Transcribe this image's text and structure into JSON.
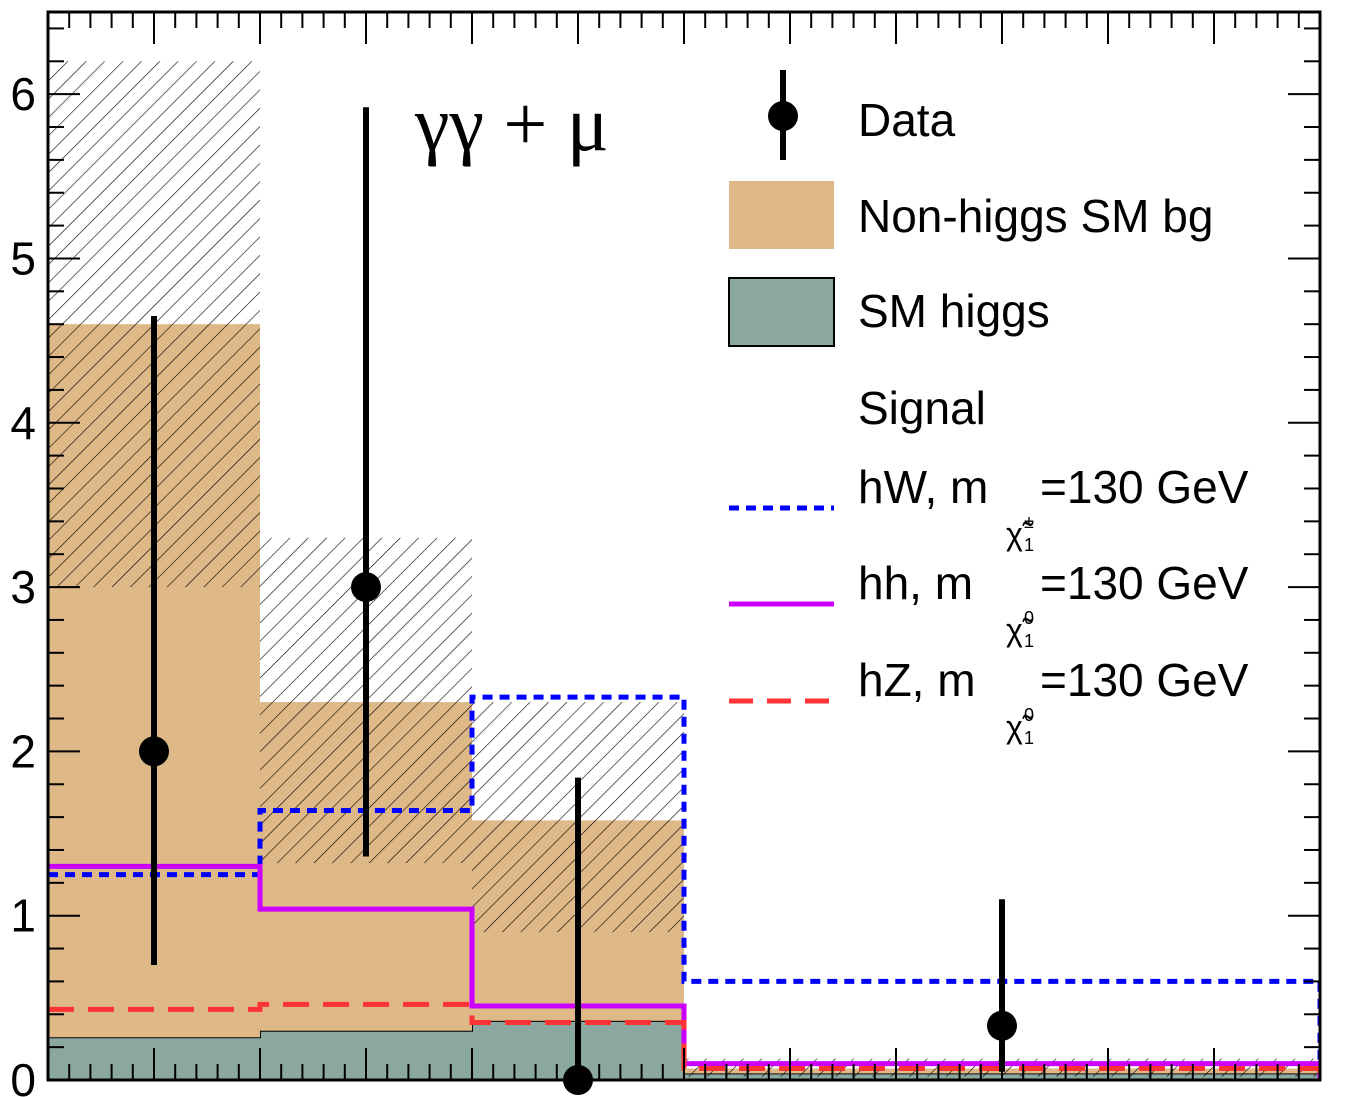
{
  "chart_data": {
    "type": "bar",
    "title": "γγ + μ",
    "xlabel": "",
    "ylabel": "",
    "ylim": [
      0,
      6.5
    ],
    "yticks": [
      0,
      1,
      2,
      3,
      4,
      5,
      6
    ],
    "ytick_labels": [
      "0",
      "1",
      "2",
      "3",
      "4",
      "5",
      "6"
    ],
    "bins": [
      {
        "lo": 0,
        "hi": 1
      },
      {
        "lo": 1,
        "hi": 2
      },
      {
        "lo": 2,
        "hi": 3
      },
      {
        "lo": 3,
        "hi": 6
      }
    ],
    "stacked": [
      {
        "name": "SM higgs",
        "values": [
          0.26,
          0.3,
          0.36,
          0.04
        ],
        "color": "#8aa8a0"
      },
      {
        "name": "Non-higgs SM bg",
        "values": [
          4.34,
          2.0,
          1.22,
          0.03
        ],
        "color": "#deb887"
      }
    ],
    "uncertainty_band": {
      "low": [
        3.0,
        1.32,
        0.9,
        0.02
      ],
      "high": [
        6.2,
        3.3,
        2.3,
        0.13
      ]
    },
    "signals": [
      {
        "name": "hW",
        "values": [
          1.25,
          1.64,
          2.33,
          0.6
        ],
        "color": "#0000ff",
        "style": "dotted"
      },
      {
        "name": "hh",
        "values": [
          1.3,
          1.04,
          0.45,
          0.1
        ],
        "color": "#cc00ff",
        "style": "solid"
      },
      {
        "name": "hZ",
        "values": [
          0.43,
          0.46,
          0.35,
          0.07
        ],
        "color": "#ff3333",
        "style": "dashed"
      }
    ],
    "data_points": [
      {
        "x": 0.5,
        "y": 2,
        "err_low": 1.3,
        "err_high": 2.65
      },
      {
        "x": 1.5,
        "y": 3,
        "err_low": 1.64,
        "err_high": 2.92
      },
      {
        "x": 2.5,
        "y": 0,
        "err_low": 0,
        "err_high": 1.84
      },
      {
        "x": 4.5,
        "y": 0.33,
        "err_low": 0.28,
        "err_high": 0.77
      }
    ],
    "legend": {
      "placement": "top-right",
      "data": "Data",
      "nonhiggs": "Non-higgs SM bg",
      "smhiggs": "SM higgs",
      "signal_header": "Signal",
      "hw_main": "hW, m",
      "hw_mass": "=130 GeV",
      "hw_sub": "χ̃",
      "hw_sub_index": "1",
      "hw_sup": "±",
      "hh_main": "hh,  m",
      "hh_mass": "=130 GeV",
      "hh_sub": "χ̃",
      "hh_sub_index": "1",
      "hh_sup": "0",
      "hz_main": "hZ,  m",
      "hz_mass": "=130 GeV",
      "hz_sub": "χ̃",
      "hz_sub_index": "1",
      "hz_sup": "0"
    }
  }
}
